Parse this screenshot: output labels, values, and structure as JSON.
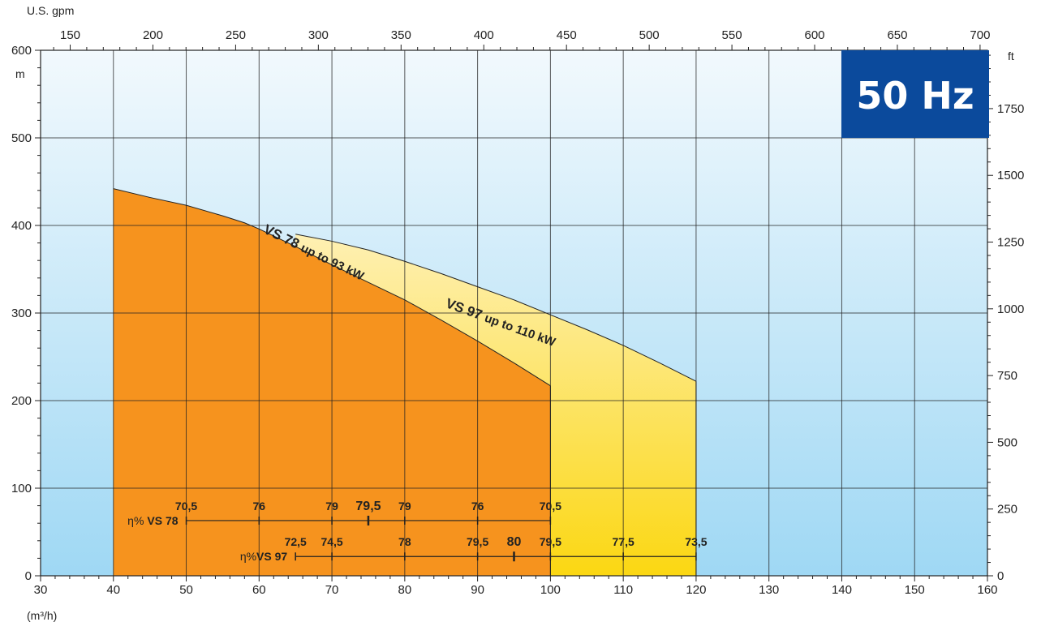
{
  "chart_data": {
    "type": "area",
    "xlabel": "(m³/h)",
    "x_axis_top_label": "U.S. gpm",
    "ylabel": "m",
    "y_axis_right_label": "ft",
    "badge": "50 Hz",
    "xlim": [
      30,
      160
    ],
    "ylim": [
      0,
      600
    ],
    "x_ticks": [
      30,
      40,
      50,
      60,
      70,
      80,
      90,
      100,
      110,
      120,
      130,
      140,
      150,
      160
    ],
    "y_ticks": [
      0,
      100,
      200,
      300,
      400,
      500,
      600
    ],
    "gpm_ticks": [
      150,
      200,
      250,
      300,
      350,
      400,
      450,
      500,
      550,
      600,
      650,
      700
    ],
    "ft_ticks": [
      0,
      250,
      500,
      750,
      1000,
      1250,
      1500,
      1750
    ],
    "grid": true,
    "series": [
      {
        "name": "VS 78 up to 93 kW",
        "model": "VS 78",
        "rest": "up to 93 kW",
        "color": "#f7a35c",
        "upper_curve": [
          [
            40,
            442
          ],
          [
            45,
            432
          ],
          [
            50,
            423
          ],
          [
            55,
            411
          ],
          [
            58,
            403
          ],
          [
            60,
            396
          ],
          [
            65,
            376
          ],
          [
            70,
            355
          ],
          [
            75,
            335
          ],
          [
            80,
            315
          ],
          [
            85,
            292
          ],
          [
            90,
            268
          ],
          [
            95,
            243
          ],
          [
            100,
            217
          ]
        ]
      },
      {
        "name": "VS 97 up to 110 kW",
        "model": "VS 97",
        "rest": "up to 110 kW",
        "color": "#fdd84a",
        "upper_curve": [
          [
            65,
            390
          ],
          [
            70,
            382
          ],
          [
            75,
            372
          ],
          [
            80,
            359
          ],
          [
            85,
            345
          ],
          [
            90,
            330
          ],
          [
            95,
            315
          ],
          [
            100,
            298
          ],
          [
            105,
            281
          ],
          [
            110,
            263
          ],
          [
            115,
            243
          ],
          [
            120,
            222
          ]
        ]
      }
    ],
    "efficiency": [
      {
        "label": "η%",
        "model": "VS 78",
        "y": 63,
        "x_start": 50,
        "x_end": 100,
        "peak_x": 75,
        "values": [
          {
            "x": 50,
            "label": "70,5"
          },
          {
            "x": 60,
            "label": "76"
          },
          {
            "x": 70,
            "label": "79"
          },
          {
            "x": 75,
            "label": "79,5",
            "peak": true
          },
          {
            "x": 80,
            "label": "79"
          },
          {
            "x": 90,
            "label": "76"
          },
          {
            "x": 100,
            "label": "70,5"
          }
        ]
      },
      {
        "label": "η%",
        "model": "VS 97",
        "y": 22,
        "x_start": 65,
        "x_end": 120,
        "peak_x": 95,
        "values": [
          {
            "x": 65,
            "label": "72,5"
          },
          {
            "x": 70,
            "label": "74,5"
          },
          {
            "x": 80,
            "label": "78"
          },
          {
            "x": 90,
            "label": "79,5"
          },
          {
            "x": 95,
            "label": "80",
            "peak": true
          },
          {
            "x": 100,
            "label": "79,5"
          },
          {
            "x": 110,
            "label": "77,5"
          },
          {
            "x": 120,
            "label": "73,5"
          }
        ]
      }
    ]
  },
  "colors": {
    "sky_top": "#f2f9fd",
    "sky_bottom": "#9fd8f4",
    "orange_top": "#fbd5a9",
    "orange_bottom": "#f6931e",
    "yellow_top": "#fef0b3",
    "yellow_bottom": "#fbd712",
    "badge": "#0b4a9c",
    "grid": "#222222"
  }
}
